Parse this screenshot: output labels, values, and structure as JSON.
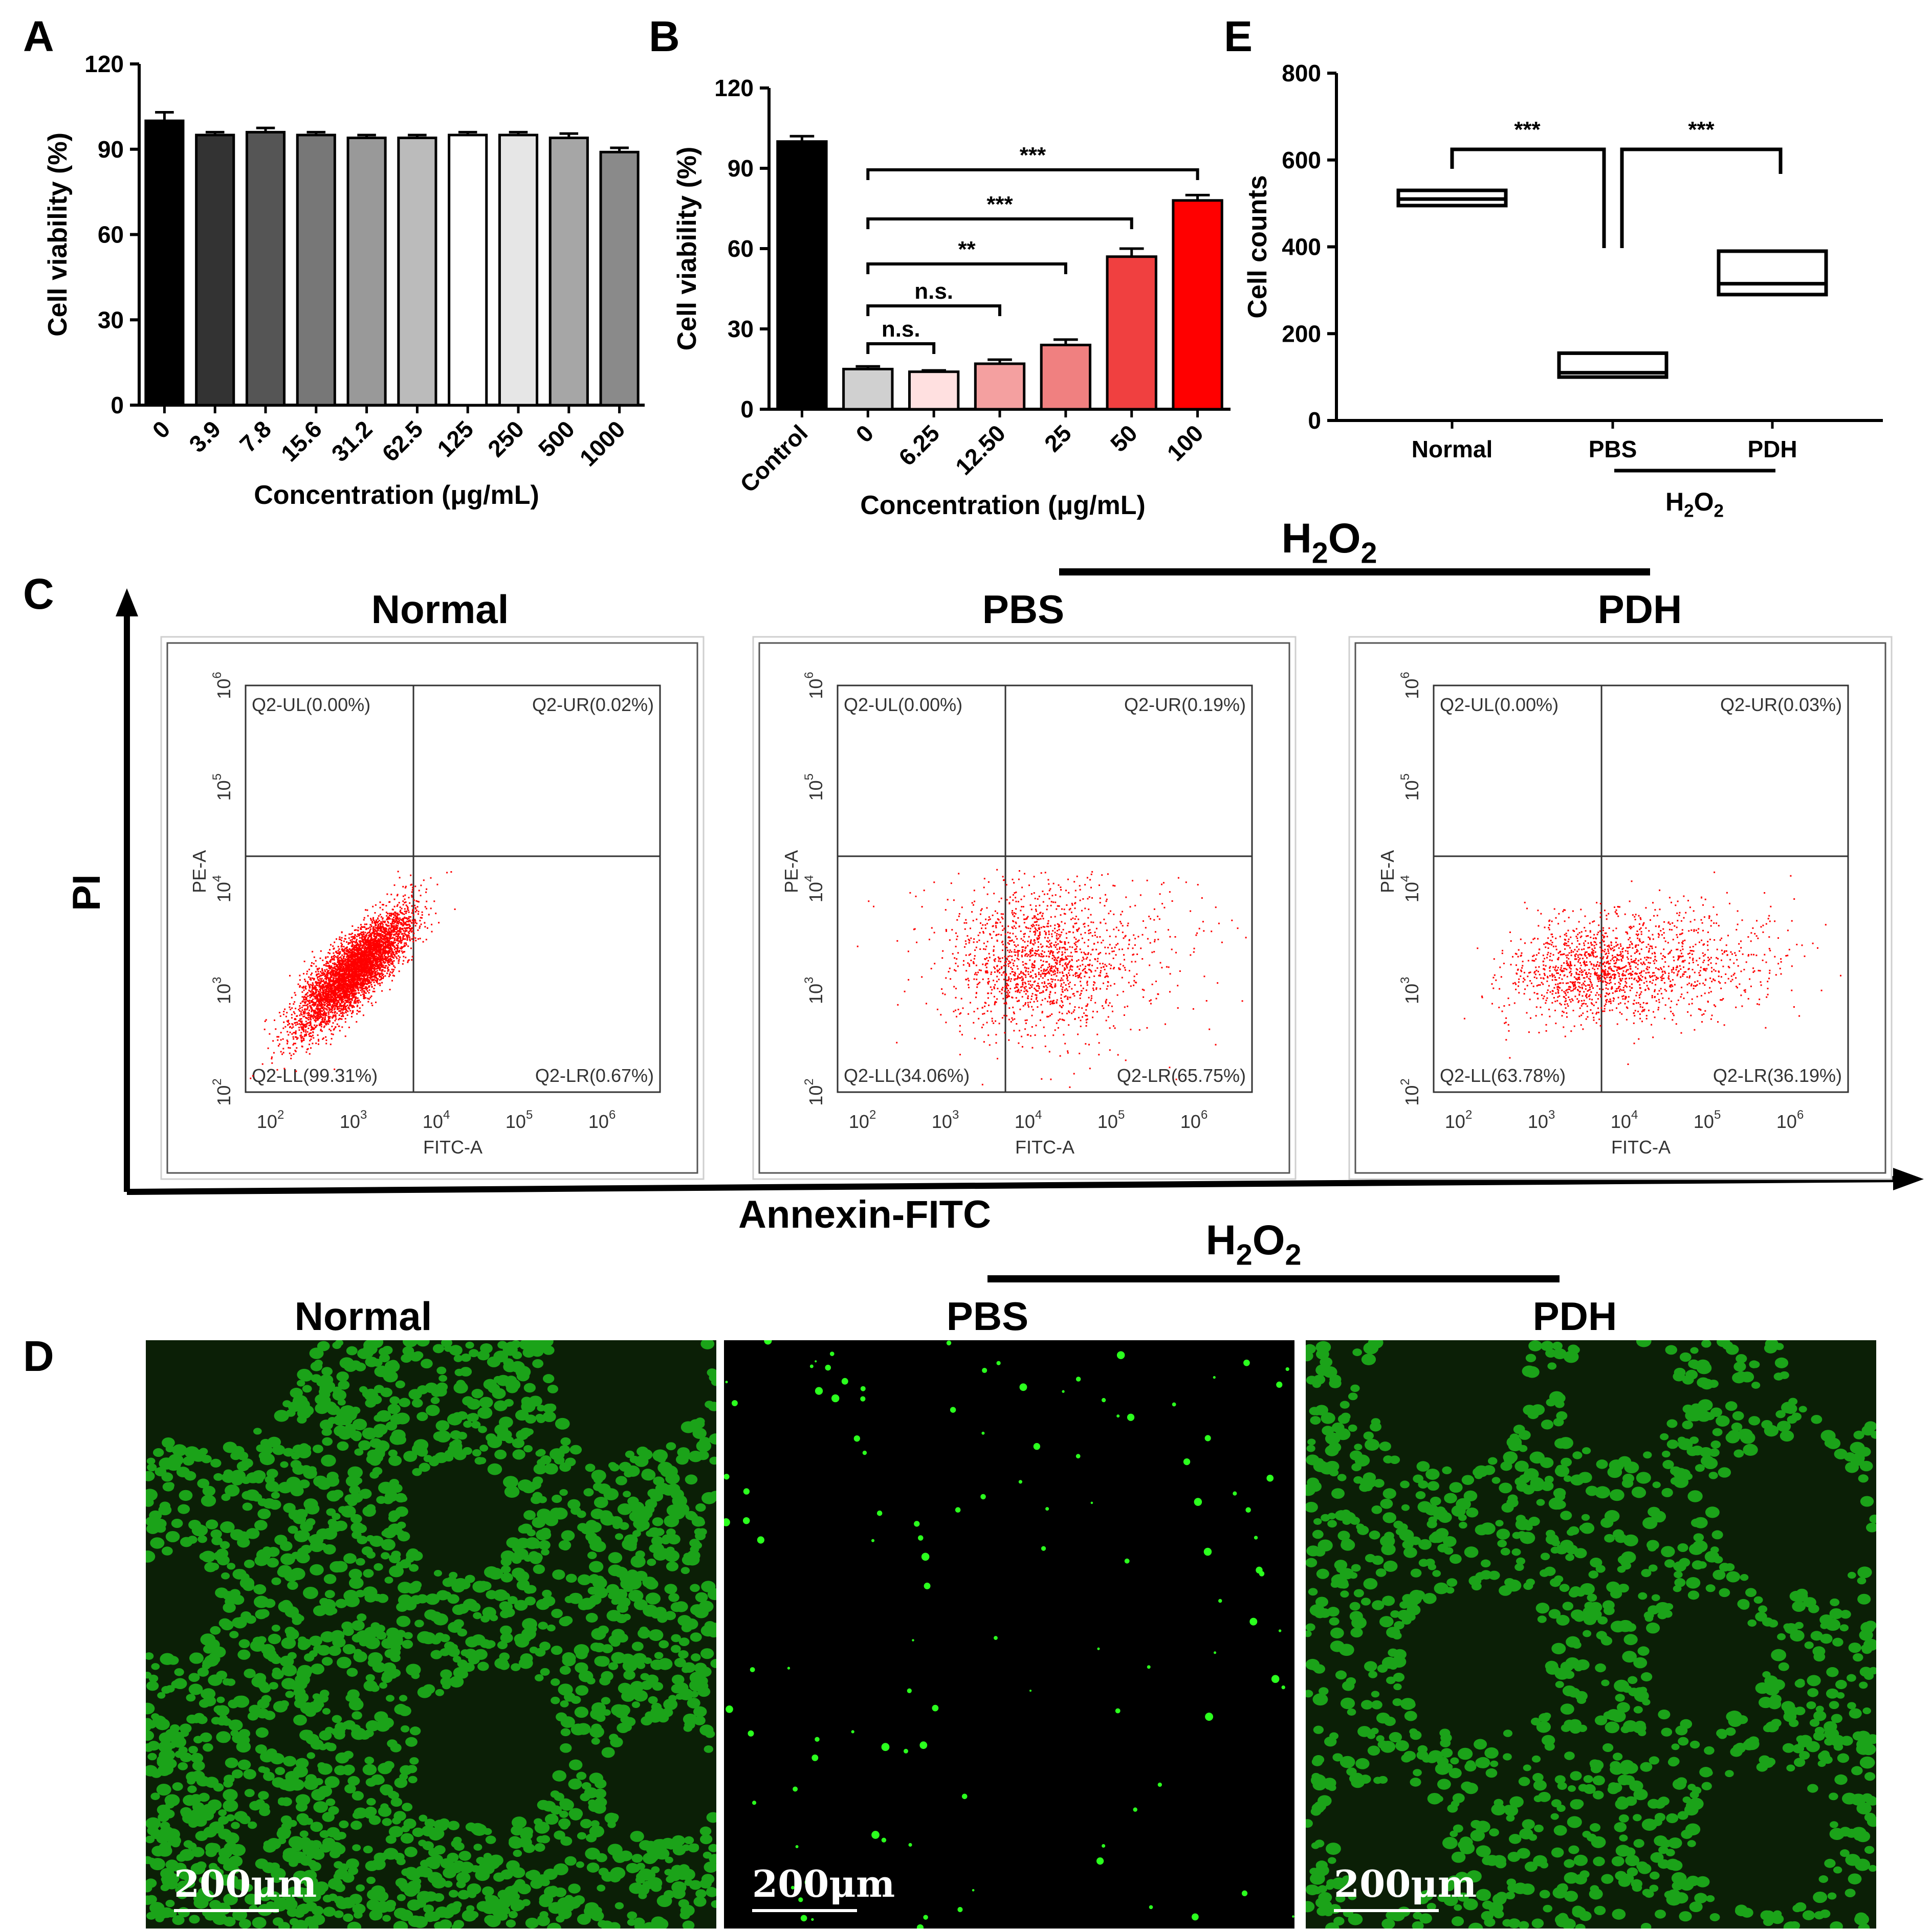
{
  "panel_letters": {
    "A": "A",
    "B": "B",
    "C": "C",
    "D": "D",
    "E": "E"
  },
  "h2o2": {
    "main": "H",
    "sub": "2",
    "tail": "O",
    "sub2": "2"
  },
  "chart_data": [
    {
      "id": "A",
      "type": "bar",
      "xlabel": "Concentration (μg/mL)",
      "ylabel": "Cell viability (%)",
      "ylim": [
        0,
        120
      ],
      "yticks": [
        "0",
        "30",
        "60",
        "90",
        "120"
      ],
      "categories": [
        "0",
        "3.9",
        "7.8",
        "15.6",
        "31.2",
        "62.5",
        "125",
        "250",
        "500",
        "1000"
      ],
      "values": [
        100,
        95,
        96,
        95,
        94,
        94,
        95,
        95,
        94,
        89
      ],
      "errors": [
        3,
        1,
        1.5,
        1,
        1,
        1,
        1,
        1,
        1.5,
        1.5
      ],
      "colors": [
        "#000000",
        "#333333",
        "#555555",
        "#777777",
        "#999999",
        "#bbbbbb",
        "#ffffff",
        "#e6e6e6",
        "#a6a6a6",
        "#8a8a8a"
      ]
    },
    {
      "id": "B",
      "type": "bar",
      "xlabel": "Concentration (μg/mL)",
      "ylabel": "Cell viability (%)",
      "ylim": [
        0,
        120
      ],
      "yticks": [
        "0",
        "30",
        "60",
        "90",
        "120"
      ],
      "categories": [
        "Control",
        "0",
        "6.25",
        "12.50",
        "25",
        "50",
        "100"
      ],
      "values": [
        100,
        15,
        14,
        17,
        24,
        57,
        78
      ],
      "errors": [
        2,
        1,
        0.5,
        1.5,
        2,
        3,
        2
      ],
      "colors": [
        "#000000",
        "#d0d0d0",
        "#ffe0e0",
        "#f4a0a0",
        "#f08080",
        "#f04040",
        "#ff0000"
      ],
      "significance": [
        {
          "from": 1,
          "to": 2,
          "label": "n.s."
        },
        {
          "from": 1,
          "to": 3,
          "label": "n.s."
        },
        {
          "from": 1,
          "to": 4,
          "label": "**"
        },
        {
          "from": 1,
          "to": 5,
          "label": "***"
        },
        {
          "from": 1,
          "to": 6,
          "label": "***"
        }
      ]
    },
    {
      "id": "E",
      "type": "box",
      "ylabel": "Cell counts",
      "ylim": [
        0,
        800
      ],
      "yticks": [
        "0",
        "200",
        "400",
        "600",
        "800"
      ],
      "categories": [
        "Normal",
        "PBS",
        "PDH"
      ],
      "boxes": [
        {
          "q1": 495,
          "median": 510,
          "q3": 530
        },
        {
          "q1": 100,
          "median": 110,
          "q3": 155
        },
        {
          "q1": 290,
          "median": 315,
          "q3": 390
        }
      ],
      "significance": [
        {
          "from": 0,
          "to": 1,
          "label": "***"
        },
        {
          "from": 1,
          "to": 2,
          "label": "***"
        }
      ],
      "group_label": "H2O2"
    }
  ],
  "flow": {
    "y_axis_title": "PI",
    "x_axis_title": "Annexin-FITC",
    "plot_xlabel": "FITC-A",
    "plot_ylabel": "PE-A",
    "ticks": [
      "10",
      "10",
      "10",
      "10",
      "10"
    ],
    "tick_exponents": [
      "2",
      "3",
      "4",
      "5",
      "6"
    ],
    "panels": [
      {
        "title": "Normal",
        "UL": "Q2-UL(0.00%)",
        "UR": "Q2-UR(0.02%)",
        "LL": "Q2-LL(99.31%)",
        "LR": "Q2-LR(0.67%)"
      },
      {
        "title": "PBS",
        "UL": "Q2-UL(0.00%)",
        "UR": "Q2-UR(0.19%)",
        "LL": "Q2-LL(34.06%)",
        "LR": "Q2-LR(65.75%)"
      },
      {
        "title": "PDH",
        "UL": "Q2-UL(0.00%)",
        "UR": "Q2-UR(0.03%)",
        "LL": "Q2-LL(63.78%)",
        "LR": "Q2-LR(36.19%)"
      }
    ]
  },
  "micro": {
    "panels": [
      {
        "title": "Normal",
        "scale": "200μm",
        "density": "high"
      },
      {
        "title": "PBS",
        "scale": "200μm",
        "density": "sparse"
      },
      {
        "title": "PDH",
        "scale": "200μm",
        "density": "medium"
      }
    ],
    "cell_color": "#22d020"
  }
}
